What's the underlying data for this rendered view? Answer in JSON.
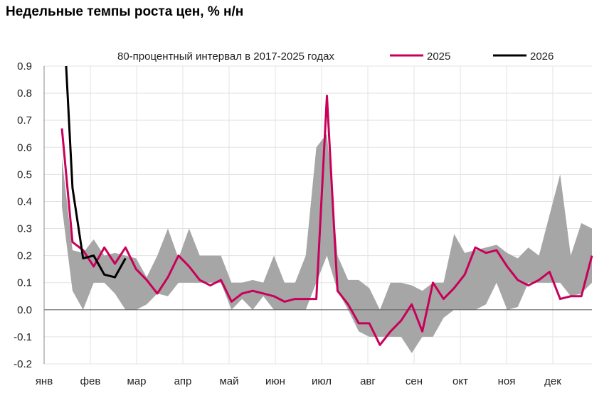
{
  "chart_data": {
    "type": "line",
    "title": "Недельные темпы роста цен, % н/н",
    "xlabel": "",
    "ylabel": "",
    "ylim": [
      -0.2,
      0.9
    ],
    "yticks": [
      "-0.2",
      "-0.1",
      "0.0",
      "0.1",
      "0.2",
      "0.3",
      "0.4",
      "0.5",
      "0.6",
      "0.7",
      "0.8",
      "0.9"
    ],
    "month_labels": [
      "янв",
      "фев",
      "мар",
      "апр",
      "май",
      "июн",
      "июл",
      "авг",
      "сен",
      "окт",
      "ноя",
      "дек"
    ],
    "grid": true,
    "legend_position": "top",
    "band": {
      "name": "80-процентный интервал в 2017-2025 годах",
      "color": "#a6a6a6",
      "upper": [
        0.56,
        0.22,
        0.21,
        0.26,
        0.2,
        0.21,
        0.2,
        0.19,
        0.12,
        0.2,
        0.3,
        0.19,
        0.3,
        0.2,
        0.2,
        0.2,
        0.1,
        0.1,
        0.11,
        0.1,
        0.2,
        0.1,
        0.1,
        0.2,
        0.6,
        0.65,
        0.2,
        0.11,
        0.11,
        0.08,
        0.0,
        0.1,
        0.1,
        0.09,
        0.07,
        0.1,
        0.1,
        0.28,
        0.21,
        0.22,
        0.23,
        0.24,
        0.21,
        0.19,
        0.23,
        0.2,
        0.35,
        0.5,
        0.2,
        0.32,
        0.3
      ],
      "lower": [
        0.38,
        0.07,
        0.0,
        0.1,
        0.1,
        0.06,
        0.0,
        0.0,
        0.02,
        0.06,
        0.05,
        0.1,
        0.1,
        0.1,
        0.1,
        0.1,
        0.0,
        0.04,
        0.0,
        0.05,
        0.0,
        0.0,
        0.0,
        0.0,
        0.1,
        0.2,
        0.07,
        0.0,
        -0.08,
        -0.1,
        -0.1,
        -0.1,
        -0.1,
        -0.16,
        -0.1,
        -0.1,
        -0.03,
        0.0,
        0.0,
        0.0,
        0.02,
        0.1,
        0.0,
        0.01,
        0.1,
        0.1,
        0.1,
        0.1,
        0.05,
        0.06,
        0.1
      ]
    },
    "series": [
      {
        "name": "2025",
        "color": "#c8005a",
        "values": [
          0.67,
          0.25,
          0.22,
          0.16,
          0.23,
          0.17,
          0.23,
          0.15,
          0.11,
          0.06,
          0.12,
          0.2,
          0.16,
          0.11,
          0.09,
          0.11,
          0.03,
          0.06,
          0.07,
          0.06,
          0.05,
          0.03,
          0.04,
          0.04,
          0.04,
          0.79,
          0.07,
          0.02,
          -0.05,
          -0.05,
          -0.13,
          -0.08,
          -0.04,
          0.02,
          -0.08,
          0.1,
          0.04,
          0.08,
          0.13,
          0.23,
          0.21,
          0.22,
          0.16,
          0.11,
          0.09,
          0.11,
          0.14,
          0.04,
          0.05,
          0.05,
          0.2
        ]
      },
      {
        "name": "2026",
        "color": "#000000",
        "values": [
          1.2,
          0.45,
          0.19,
          0.2,
          0.13,
          0.12,
          0.19
        ]
      }
    ]
  }
}
